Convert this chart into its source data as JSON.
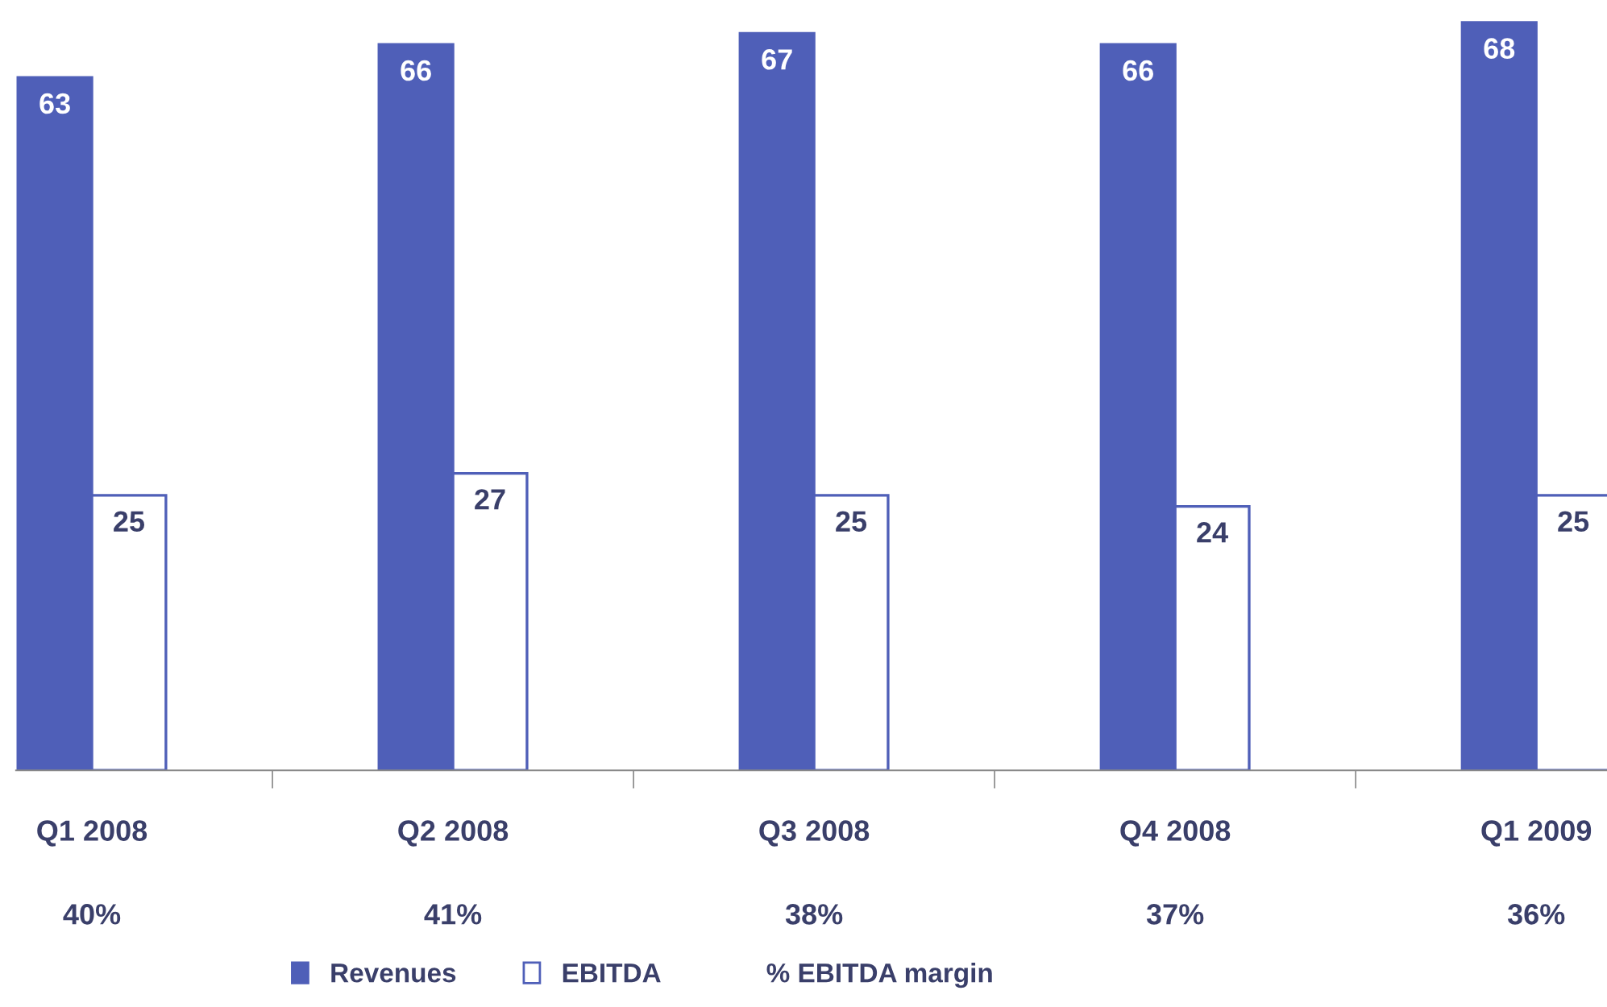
{
  "chart_data": {
    "type": "bar",
    "categories": [
      "Q1 2008",
      "Q2 2008",
      "Q3 2008",
      "Q4 2008",
      "Q1 2009"
    ],
    "series": [
      {
        "name": "Revenues",
        "color": "#4f5fb8",
        "values": [
          63,
          66,
          67,
          66,
          68
        ]
      },
      {
        "name": "EBITDA",
        "color": "#ffffff",
        "values": [
          25,
          27,
          25,
          24,
          25
        ]
      }
    ],
    "annotations": [
      "40%",
      "41%",
      "38%",
      "37%",
      "36%",
      "% EBITDA margin"
    ],
    "data_labels": true,
    "tick_labels": "x",
    "grid": false,
    "legend": "bottom"
  }
}
